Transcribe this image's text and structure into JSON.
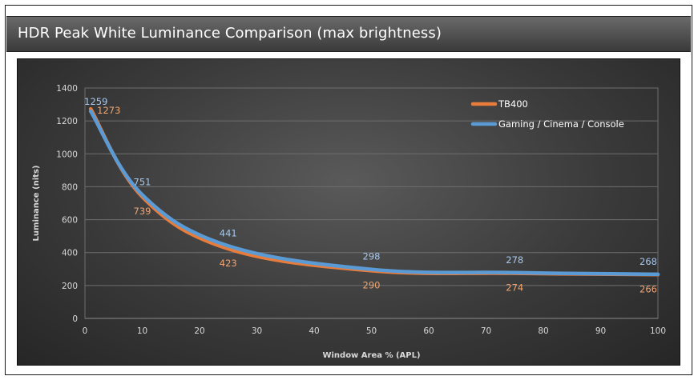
{
  "header": {
    "title": "HDR Peak White Luminance Comparison (max brightness)"
  },
  "colors": {
    "tb400": "#e87c3a",
    "gaming": "#5b9bd5",
    "tb400_label": "#f0a572",
    "gaming_label": "#a7c9ee"
  },
  "chart_data": {
    "type": "line",
    "title": "HDR Peak White Luminance Comparison (max brightness)",
    "xlabel": "Window Area % (APL)",
    "ylabel": "Luminance (nits)",
    "xlim": [
      0,
      100
    ],
    "ylim": [
      0,
      1400
    ],
    "x_ticks": [
      0,
      10,
      20,
      30,
      40,
      50,
      60,
      70,
      80,
      90,
      100
    ],
    "y_ticks": [
      0,
      200,
      400,
      600,
      800,
      1000,
      1200,
      1400
    ],
    "grid": true,
    "legend_position": "top-right",
    "x": [
      1,
      10,
      25,
      50,
      75,
      100
    ],
    "series": [
      {
        "name": "TB400",
        "values": [
          1273,
          739,
          423,
          290,
          274,
          266
        ],
        "labels": [
          "1273",
          "739",
          "423",
          "290",
          "274",
          "266"
        ]
      },
      {
        "name": "Gaming / Cinema / Console",
        "values": [
          1259,
          751,
          441,
          298,
          278,
          268
        ],
        "labels": [
          "1259",
          "751",
          "441",
          "298",
          "278",
          "268"
        ]
      }
    ]
  }
}
